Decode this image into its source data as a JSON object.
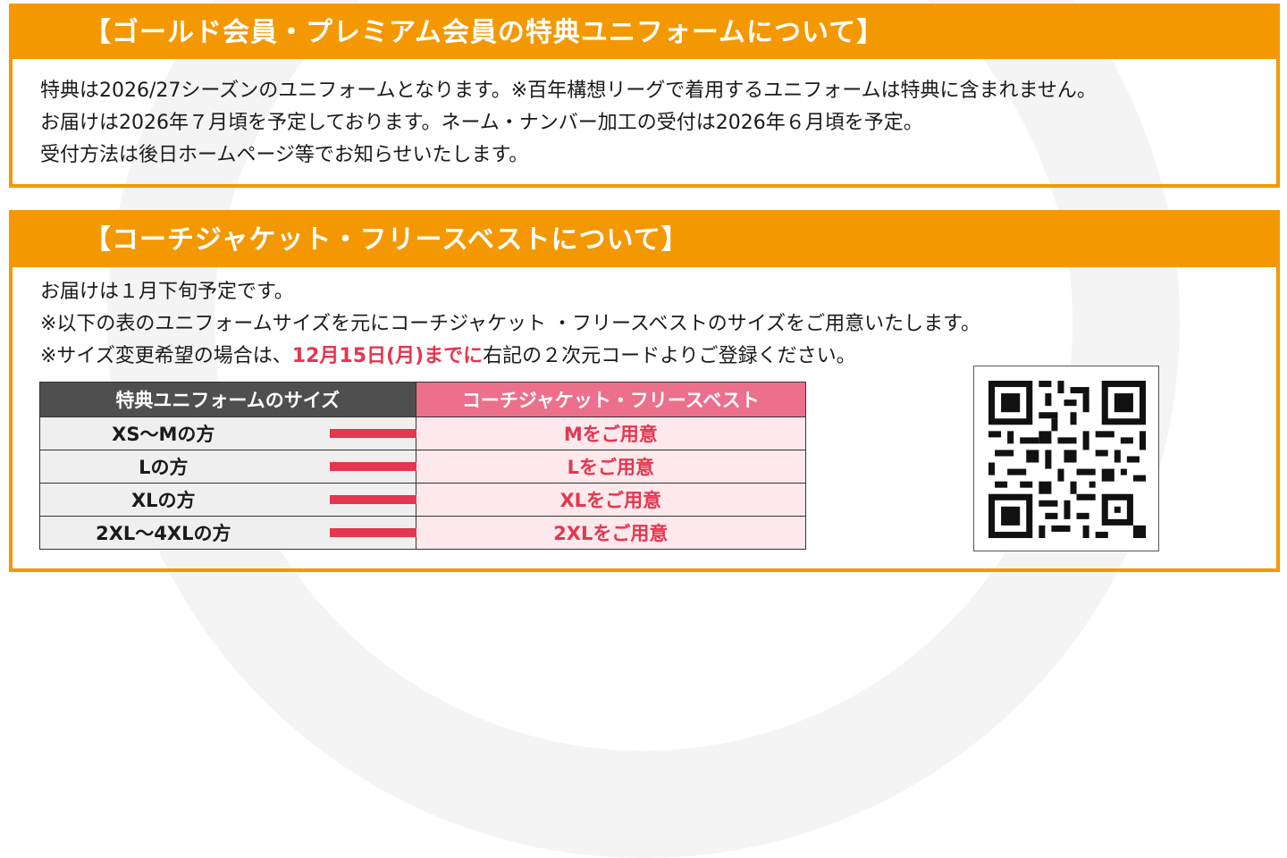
{
  "panel1": {
    "title": "【ゴールド会員・プレミアム会員の特典ユニフォームについて】",
    "lines": [
      "特典は2026/27シーズンのユニフォームとなります。※百年構想リーグで着用するユニフォームは特典に含まれません。",
      "お届けは2026年７月頃を予定しております。ネーム・ナンバー加工の受付は2026年６月頃を予定。",
      "受付方法は後日ホームページ等でお知らせいたします。"
    ]
  },
  "panel2": {
    "title": "【コーチジャケット・フリースベストについて】",
    "line1": "お届けは１月下旬予定です。",
    "line2": "※以下の表のユニフォームサイズを元にコーチジャケット ・フリースベストのサイズをご用意いたします。",
    "line3_pre": "※サイズ変更希望の場合は、",
    "line3_highlight": "12月15日(月)までに",
    "line3_post": "右記の２次元コードよりご登録ください。"
  },
  "table": {
    "header_left": "特典ユニフォームのサイズ",
    "header_right": "コーチジャケット・フリースベスト",
    "rows": [
      {
        "left": "XS～Mの方",
        "right": "Mをご用意"
      },
      {
        "left": "Lの方",
        "right": "Lをご用意"
      },
      {
        "left": "XLの方",
        "right": "XLをご用意"
      },
      {
        "left": "2XL～4XLの方",
        "right": "2XLをご用意"
      }
    ]
  },
  "qr": {
    "icon": "qr-code-icon"
  },
  "colors": {
    "accent": "#f39800",
    "highlight": "#e4364e",
    "table_header_left": "#4f4f4f",
    "table_header_right": "#ec6f8c"
  }
}
